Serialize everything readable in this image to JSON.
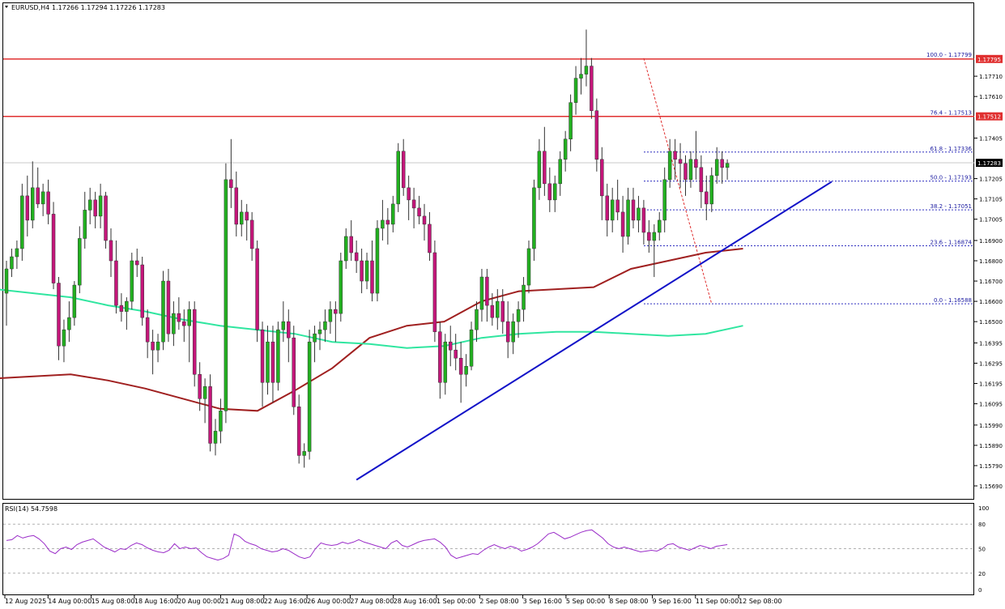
{
  "header": {
    "symbol": "EURUSD,H4",
    "ohlc": "1.17266 1.17294 1.17226 1.17283"
  },
  "rsi_header": "RSI(14) 54.7598",
  "colors": {
    "bull": "#22b020",
    "bear": "#c4167a",
    "ma_slow": "#a02020",
    "ma_fast": "#30e6a0",
    "trendline": "#1212c8",
    "resistance": "#e03030",
    "fib": "#3030c0",
    "rsi": "#9a2cc8"
  },
  "chart_data": {
    "type": "candlestick",
    "symbol": "EURUSD",
    "timeframe": "H4",
    "last_price": 1.17283,
    "ylim": [
      1.1569,
      1.1795
    ],
    "price_ticks": [
      "1.17795",
      "1.17710",
      "1.17610",
      "1.17512",
      "1.17405",
      "1.17283",
      "1.17205",
      "1.17105",
      "1.17005",
      "1.16900",
      "1.16800",
      "1.16700",
      "1.16600",
      "1.16500",
      "1.16395",
      "1.16295",
      "1.16195",
      "1.16095",
      "1.15990",
      "1.15890",
      "1.15790",
      "1.15690"
    ],
    "x_labels": [
      "12 Aug 2025",
      "14 Aug 00:00",
      "15 Aug 08:00",
      "18 Aug 16:00",
      "20 Aug 00:00",
      "21 Aug 08:00",
      "22 Aug 16:00",
      "26 Aug 00:00",
      "27 Aug 08:00",
      "28 Aug 16:00",
      "1 Sep 00:00",
      "2 Sep 08:00",
      "3 Sep 16:00",
      "5 Sep 00:00",
      "8 Sep 08:00",
      "9 Sep 16:00",
      "11 Sep 00:00",
      "12 Sep 08:00"
    ],
    "fibonacci": [
      {
        "label": "100.0 - 1.17799",
        "price": 1.17799
      },
      {
        "label": "76.4 - 1.17513",
        "price": 1.17513
      },
      {
        "label": "61.8 - 1.17336",
        "price": 1.17336
      },
      {
        "label": "50.0 - 1.17193",
        "price": 1.17193
      },
      {
        "label": "38.2 - 1.17051",
        "price": 1.17051
      },
      {
        "label": "23.6 - 1.16874",
        "price": 1.16874
      },
      {
        "label": "0.0 - 1.16588",
        "price": 1.16588
      }
    ],
    "resistance_levels": [
      1.17795,
      1.17512
    ],
    "trendline": {
      "from": {
        "candle": 0,
        "price": 1.1572
      },
      "to": {
        "candle": 149,
        "price": 1.1719
      }
    },
    "candles": [
      [
        1.1664,
        1.168,
        1.1648,
        1.1676
      ],
      [
        1.1676,
        1.1686,
        1.1672,
        1.1682
      ],
      [
        1.1682,
        1.169,
        1.1676,
        1.1686
      ],
      [
        1.1686,
        1.1718,
        1.168,
        1.1712
      ],
      [
        1.1712,
        1.1722,
        1.1692,
        1.17
      ],
      [
        1.17,
        1.1729,
        1.1696,
        1.1716
      ],
      [
        1.1716,
        1.1726,
        1.1706,
        1.1708
      ],
      [
        1.1708,
        1.1718,
        1.1702,
        1.1714
      ],
      [
        1.1714,
        1.172,
        1.1698,
        1.1703
      ],
      [
        1.1703,
        1.1709,
        1.1666,
        1.1669
      ],
      [
        1.1669,
        1.1672,
        1.1631,
        1.1638
      ],
      [
        1.1638,
        1.1651,
        1.163,
        1.1646
      ],
      [
        1.1646,
        1.166,
        1.164,
        1.1652
      ],
      [
        1.1652,
        1.167,
        1.1648,
        1.1668
      ],
      [
        1.1668,
        1.1697,
        1.1664,
        1.1691
      ],
      [
        1.1691,
        1.1714,
        1.1686,
        1.1705
      ],
      [
        1.1705,
        1.1716,
        1.1698,
        1.171
      ],
      [
        1.171,
        1.1714,
        1.1696,
        1.1702
      ],
      [
        1.1702,
        1.1718,
        1.1696,
        1.1712
      ],
      [
        1.1712,
        1.1714,
        1.1686,
        1.169
      ],
      [
        1.169,
        1.1696,
        1.1672,
        1.168
      ],
      [
        1.168,
        1.169,
        1.1654,
        1.1658
      ],
      [
        1.1658,
        1.1664,
        1.165,
        1.1655
      ],
      [
        1.1655,
        1.1662,
        1.1646,
        1.166
      ],
      [
        1.166,
        1.1684,
        1.1656,
        1.168
      ],
      [
        1.168,
        1.1686,
        1.1672,
        1.1678
      ],
      [
        1.1678,
        1.1682,
        1.1648,
        1.1652
      ],
      [
        1.1652,
        1.1656,
        1.1632,
        1.164
      ],
      [
        1.164,
        1.1646,
        1.1624,
        1.1636
      ],
      [
        1.1636,
        1.1644,
        1.163,
        1.164
      ],
      [
        1.164,
        1.1675,
        1.1636,
        1.167
      ],
      [
        1.167,
        1.1676,
        1.164,
        1.1644
      ],
      [
        1.1644,
        1.166,
        1.1638,
        1.1654
      ],
      [
        1.1654,
        1.1662,
        1.1646,
        1.165
      ],
      [
        1.165,
        1.1656,
        1.164,
        1.1648
      ],
      [
        1.1648,
        1.166,
        1.163,
        1.1656
      ],
      [
        1.1656,
        1.166,
        1.1618,
        1.1624
      ],
      [
        1.1624,
        1.163,
        1.1606,
        1.1612
      ],
      [
        1.1612,
        1.1622,
        1.16,
        1.1618
      ],
      [
        1.1618,
        1.1624,
        1.1586,
        1.159
      ],
      [
        1.159,
        1.1602,
        1.1584,
        1.1596
      ],
      [
        1.1596,
        1.1612,
        1.159,
        1.1606
      ],
      [
        1.1606,
        1.1728,
        1.16,
        1.172
      ],
      [
        1.172,
        1.174,
        1.1706,
        1.1716
      ],
      [
        1.1716,
        1.1724,
        1.1692,
        1.1698
      ],
      [
        1.1698,
        1.171,
        1.1692,
        1.1704
      ],
      [
        1.1704,
        1.1708,
        1.169,
        1.17
      ],
      [
        1.17,
        1.1704,
        1.168,
        1.1686
      ],
      [
        1.1686,
        1.169,
        1.164,
        1.1646
      ],
      [
        1.1646,
        1.165,
        1.1608,
        1.162
      ],
      [
        1.162,
        1.1648,
        1.1614,
        1.164
      ],
      [
        1.164,
        1.1648,
        1.161,
        1.162
      ],
      [
        1.162,
        1.165,
        1.1616,
        1.1646
      ],
      [
        1.1646,
        1.166,
        1.164,
        1.165
      ],
      [
        1.165,
        1.1656,
        1.163,
        1.1642
      ],
      [
        1.1642,
        1.1648,
        1.1604,
        1.1608
      ],
      [
        1.1608,
        1.1614,
        1.158,
        1.1584
      ],
      [
        1.1584,
        1.159,
        1.1578,
        1.1586
      ],
      [
        1.1586,
        1.1646,
        1.1582,
        1.164
      ],
      [
        1.164,
        1.1648,
        1.163,
        1.1644
      ],
      [
        1.1644,
        1.165,
        1.1636,
        1.1646
      ],
      [
        1.1646,
        1.1656,
        1.164,
        1.165
      ],
      [
        1.165,
        1.166,
        1.1644,
        1.1656
      ],
      [
        1.1656,
        1.166,
        1.164,
        1.1654
      ],
      [
        1.1654,
        1.1684,
        1.165,
        1.168
      ],
      [
        1.168,
        1.1696,
        1.1676,
        1.1692
      ],
      [
        1.1692,
        1.17,
        1.168,
        1.1684
      ],
      [
        1.1684,
        1.169,
        1.1674,
        1.168
      ],
      [
        1.168,
        1.1686,
        1.1664,
        1.167
      ],
      [
        1.167,
        1.1684,
        1.1666,
        1.168
      ],
      [
        1.168,
        1.169,
        1.166,
        1.1664
      ],
      [
        1.1664,
        1.17,
        1.166,
        1.1696
      ],
      [
        1.1696,
        1.171,
        1.169,
        1.17
      ],
      [
        1.17,
        1.1706,
        1.1688,
        1.1698
      ],
      [
        1.1698,
        1.1712,
        1.1694,
        1.1708
      ],
      [
        1.1708,
        1.1738,
        1.1704,
        1.1734
      ],
      [
        1.1734,
        1.174,
        1.1712,
        1.1716
      ],
      [
        1.1716,
        1.1722,
        1.17,
        1.171
      ],
      [
        1.171,
        1.1716,
        1.1696,
        1.1706
      ],
      [
        1.1706,
        1.1712,
        1.1698,
        1.1702
      ],
      [
        1.1702,
        1.1708,
        1.169,
        1.1698
      ],
      [
        1.1698,
        1.1704,
        1.168,
        1.1684
      ],
      [
        1.1684,
        1.169,
        1.164,
        1.1645
      ],
      [
        1.1645,
        1.165,
        1.1612,
        1.162
      ],
      [
        1.162,
        1.1644,
        1.1614,
        1.164
      ],
      [
        1.164,
        1.1648,
        1.1628,
        1.1636
      ],
      [
        1.1636,
        1.1644,
        1.1626,
        1.1632
      ],
      [
        1.1632,
        1.164,
        1.161,
        1.1624
      ],
      [
        1.1624,
        1.1634,
        1.1618,
        1.1628
      ],
      [
        1.1628,
        1.165,
        1.1626,
        1.1646
      ],
      [
        1.1646,
        1.166,
        1.164,
        1.1656
      ],
      [
        1.1656,
        1.1676,
        1.165,
        1.1672
      ],
      [
        1.1672,
        1.1676,
        1.165,
        1.1658
      ],
      [
        1.1658,
        1.1664,
        1.1648,
        1.1652
      ],
      [
        1.1652,
        1.1666,
        1.1646,
        1.166
      ],
      [
        1.166,
        1.1666,
        1.1644,
        1.165
      ],
      [
        1.165,
        1.166,
        1.1632,
        1.164
      ],
      [
        1.164,
        1.1654,
        1.1634,
        1.165
      ],
      [
        1.165,
        1.166,
        1.1642,
        1.1656
      ],
      [
        1.1656,
        1.1672,
        1.165,
        1.1668
      ],
      [
        1.1668,
        1.169,
        1.1664,
        1.1686
      ],
      [
        1.1686,
        1.172,
        1.168,
        1.1716
      ],
      [
        1.1716,
        1.174,
        1.171,
        1.1734
      ],
      [
        1.1734,
        1.1746,
        1.1712,
        1.1718
      ],
      [
        1.1718,
        1.1726,
        1.1704,
        1.171
      ],
      [
        1.171,
        1.1722,
        1.1704,
        1.1718
      ],
      [
        1.1718,
        1.1734,
        1.1712,
        1.173
      ],
      [
        1.173,
        1.1744,
        1.1724,
        1.174
      ],
      [
        1.174,
        1.1762,
        1.1734,
        1.1758
      ],
      [
        1.1758,
        1.1776,
        1.1752,
        1.177
      ],
      [
        1.177,
        1.178,
        1.1762,
        1.1772
      ],
      [
        1.1772,
        1.1794,
        1.1766,
        1.1776
      ],
      [
        1.1776,
        1.178,
        1.175,
        1.1754
      ],
      [
        1.1754,
        1.176,
        1.1724,
        1.173
      ],
      [
        1.173,
        1.1736,
        1.17,
        1.1712
      ],
      [
        1.1712,
        1.1718,
        1.1692,
        1.17
      ],
      [
        1.17,
        1.1716,
        1.1694,
        1.171
      ],
      [
        1.171,
        1.172,
        1.17,
        1.1704
      ],
      [
        1.1704,
        1.1712,
        1.1684,
        1.1692
      ],
      [
        1.1692,
        1.1716,
        1.1688,
        1.171
      ],
      [
        1.171,
        1.1716,
        1.1696,
        1.17
      ],
      [
        1.17,
        1.1712,
        1.1694,
        1.1706
      ],
      [
        1.1706,
        1.171,
        1.1688,
        1.1694
      ],
      [
        1.1694,
        1.17,
        1.1684,
        1.169
      ],
      [
        1.169,
        1.1698,
        1.1672,
        1.1694
      ],
      [
        1.1694,
        1.1704,
        1.169,
        1.17
      ],
      [
        1.17,
        1.1726,
        1.1694,
        1.172
      ],
      [
        1.172,
        1.174,
        1.1716,
        1.1734
      ],
      [
        1.1734,
        1.174,
        1.172,
        1.173
      ],
      [
        1.173,
        1.1738,
        1.1716,
        1.1728
      ],
      [
        1.1728,
        1.1732,
        1.1712,
        1.172
      ],
      [
        1.172,
        1.1734,
        1.1716,
        1.173
      ],
      [
        1.173,
        1.1744,
        1.172,
        1.1726
      ],
      [
        1.1726,
        1.1732,
        1.1706,
        1.1714
      ],
      [
        1.1714,
        1.1722,
        1.17,
        1.1708
      ],
      [
        1.1708,
        1.1726,
        1.1704,
        1.1722
      ],
      [
        1.1722,
        1.1736,
        1.1718,
        1.173
      ],
      [
        1.173,
        1.1734,
        1.1718,
        1.1726
      ],
      [
        1.1726,
        1.173,
        1.172,
        1.1728
      ]
    ],
    "moving_averages": [
      {
        "color": "ma_slow",
        "values": [
          1.1622,
          1.1623,
          1.1624,
          1.1621,
          1.1617,
          1.1612,
          1.1607,
          1.1606,
          1.1616,
          1.1627,
          1.1642,
          1.1648,
          1.165,
          1.166,
          1.1665,
          1.1666,
          1.1667,
          1.1676,
          1.168,
          1.1684,
          1.1686
        ]
      },
      {
        "color": "ma_fast",
        "values": [
          1.1666,
          1.1664,
          1.1662,
          1.1658,
          1.1655,
          1.1651,
          1.1648,
          1.1646,
          1.1644,
          1.164,
          1.1639,
          1.1637,
          1.1638,
          1.1642,
          1.1644,
          1.1645,
          1.1645,
          1.1644,
          1.1643,
          1.1644,
          1.1648
        ]
      }
    ],
    "rsi": {
      "period": 14,
      "value": 54.7598,
      "levels": [
        80,
        50,
        20
      ],
      "ylim": [
        0,
        100
      ],
      "y_ticks": [
        "100",
        "80",
        "50",
        "20",
        "0"
      ],
      "values": [
        60,
        61,
        66,
        63,
        65,
        66,
        62,
        56,
        47,
        44,
        50,
        52,
        49,
        55,
        58,
        60,
        62,
        57,
        52,
        49,
        46,
        50,
        49,
        54,
        57,
        55,
        51,
        48,
        46,
        45,
        48,
        56,
        50,
        52,
        50,
        51,
        45,
        40,
        38,
        36,
        38,
        42,
        68,
        65,
        59,
        56,
        54,
        50,
        48,
        46,
        47,
        50,
        48,
        44,
        40,
        38,
        40,
        50,
        57,
        55,
        54,
        55,
        58,
        56,
        58,
        61,
        58,
        56,
        54,
        52,
        50,
        57,
        60,
        54,
        52,
        55,
        58,
        60,
        61,
        62,
        58,
        52,
        42,
        38,
        40,
        42,
        44,
        43,
        48,
        52,
        55,
        52,
        50,
        53,
        51,
        47,
        49,
        52,
        56,
        62,
        68,
        70,
        66,
        62,
        64,
        67,
        70,
        72,
        73,
        68,
        63,
        56,
        52,
        50,
        52,
        50,
        48,
        46,
        47,
        48,
        47,
        50,
        55,
        56,
        52,
        50,
        48,
        51,
        54,
        52,
        50,
        53,
        54,
        55
      ]
    }
  }
}
